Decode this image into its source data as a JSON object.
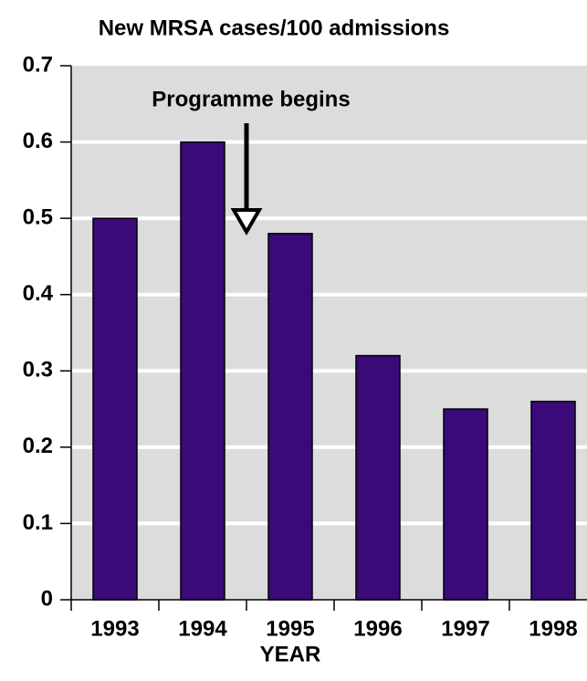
{
  "chart_data": {
    "type": "bar",
    "y_axis_title": "New MRSA cases/100 admissions",
    "x_axis_title": "YEAR",
    "annotation": "Programme begins",
    "categories": [
      "1993",
      "1994",
      "1995",
      "1996",
      "1997",
      "1998"
    ],
    "values": [
      0.5,
      0.6,
      0.48,
      0.32,
      0.25,
      0.26
    ],
    "color": "#3a0a78",
    "ylim": [
      0,
      0.7
    ],
    "yticks": [
      0,
      0.1,
      0.2,
      0.3,
      0.4,
      0.5,
      0.6,
      0.7
    ],
    "grid": true
  }
}
